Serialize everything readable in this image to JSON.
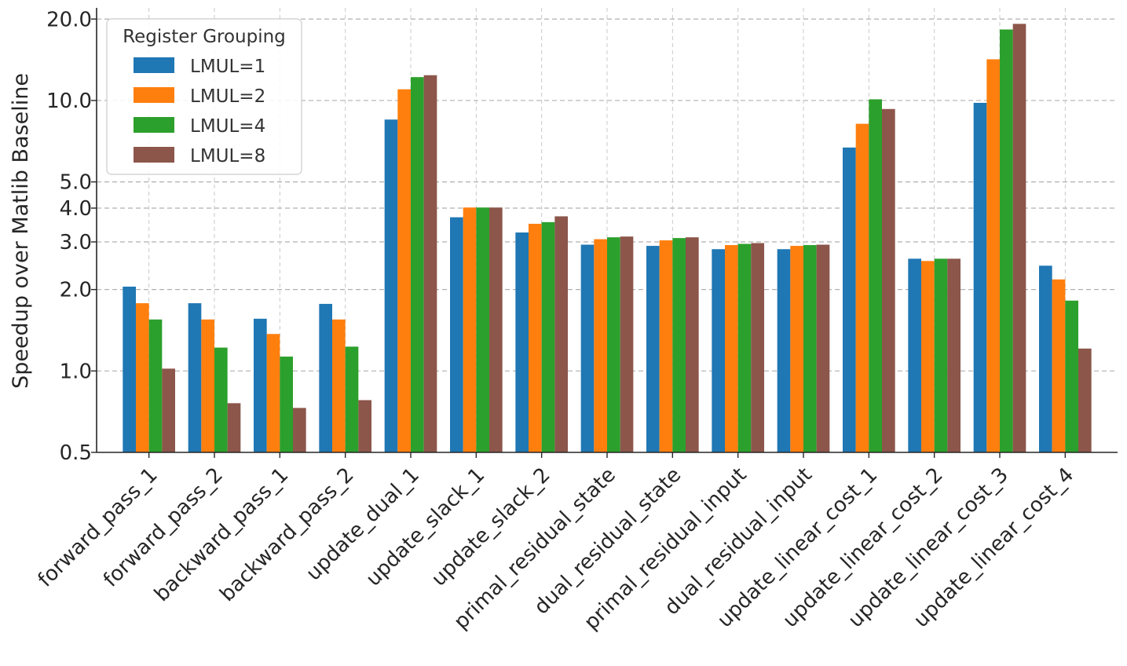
{
  "chart_data": {
    "type": "bar",
    "title": "",
    "xlabel": "",
    "ylabel": "Speedup over Matlib Baseline",
    "yscale": "log",
    "ylim": [
      0.5,
      22
    ],
    "yticks": [
      0.5,
      1.0,
      2.0,
      3.0,
      4.0,
      5.0,
      10.0,
      20.0
    ],
    "ytick_labels": [
      "0.5",
      "1.0",
      "2.0",
      "3.0",
      "4.0",
      "5.0",
      "10.0",
      "20.0"
    ],
    "grid": true,
    "legend_title": "Register Grouping",
    "legend_position": "top-left",
    "categories": [
      "forward_pass_1",
      "forward_pass_2",
      "backward_pass_1",
      "backward_pass_2",
      "update_dual_1",
      "update_slack_1",
      "update_slack_2",
      "primal_residual_state",
      "dual_residual_state",
      "primal_residual_input",
      "dual_residual_input",
      "update_linear_cost_1",
      "update_linear_cost_2",
      "update_linear_cost_3",
      "update_linear_cost_4"
    ],
    "series": [
      {
        "name": "LMUL=1",
        "color": "#1f77b4",
        "values": [
          2.05,
          1.78,
          1.56,
          1.77,
          8.5,
          3.7,
          3.25,
          2.93,
          2.9,
          2.82,
          2.82,
          6.7,
          2.6,
          9.8,
          2.45
        ]
      },
      {
        "name": "LMUL=2",
        "color": "#ff7f0e",
        "values": [
          1.78,
          1.55,
          1.37,
          1.55,
          11.0,
          4.02,
          3.5,
          3.07,
          3.04,
          2.92,
          2.9,
          8.2,
          2.55,
          14.2,
          2.18
        ]
      },
      {
        "name": "LMUL=4",
        "color": "#2ca02c",
        "values": [
          1.55,
          1.22,
          1.13,
          1.23,
          12.2,
          4.02,
          3.55,
          3.12,
          3.1,
          2.95,
          2.92,
          10.1,
          2.6,
          18.3,
          1.82
        ]
      },
      {
        "name": "LMUL=8",
        "color": "#8c564b",
        "values": [
          1.02,
          0.76,
          0.73,
          0.78,
          12.4,
          4.02,
          3.73,
          3.14,
          3.12,
          2.97,
          2.93,
          9.3,
          2.6,
          19.2,
          1.21
        ]
      }
    ]
  }
}
